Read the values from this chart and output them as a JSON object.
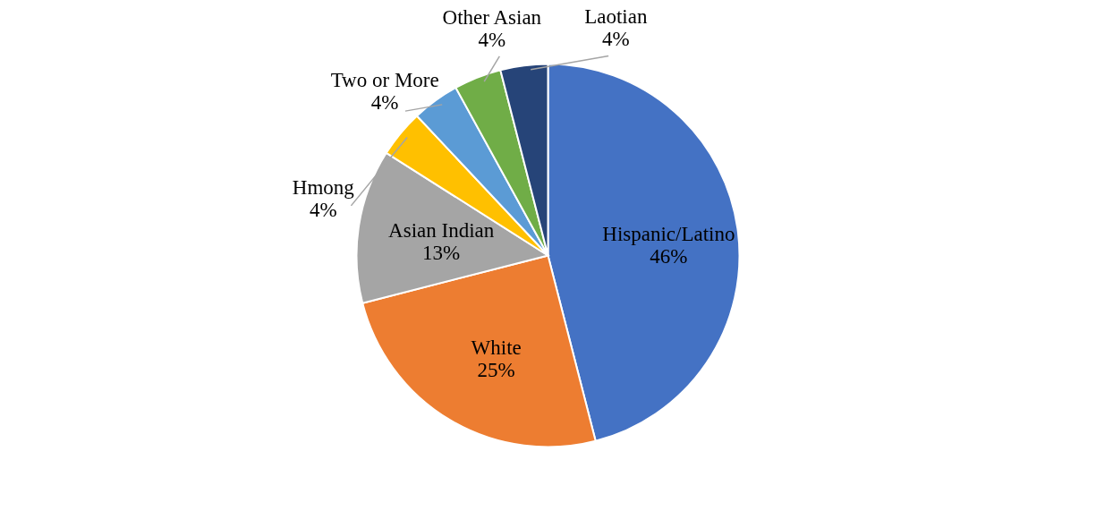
{
  "chart_data": {
    "type": "pie",
    "categories": [
      "Hispanic/Latino",
      "White",
      "Asian Indian",
      "Hmong",
      "Two or More",
      "Other Asian",
      "Laotian"
    ],
    "values": [
      46,
      25,
      13,
      4,
      4,
      4,
      4
    ],
    "value_labels": [
      "46%",
      "25%",
      "13%",
      "4%",
      "4%",
      "4%",
      "4%"
    ],
    "colors": [
      "#4472c4",
      "#ed7d31",
      "#a5a5a5",
      "#ffc000",
      "#5b9bd5",
      "#70ad47",
      "#264478"
    ]
  }
}
